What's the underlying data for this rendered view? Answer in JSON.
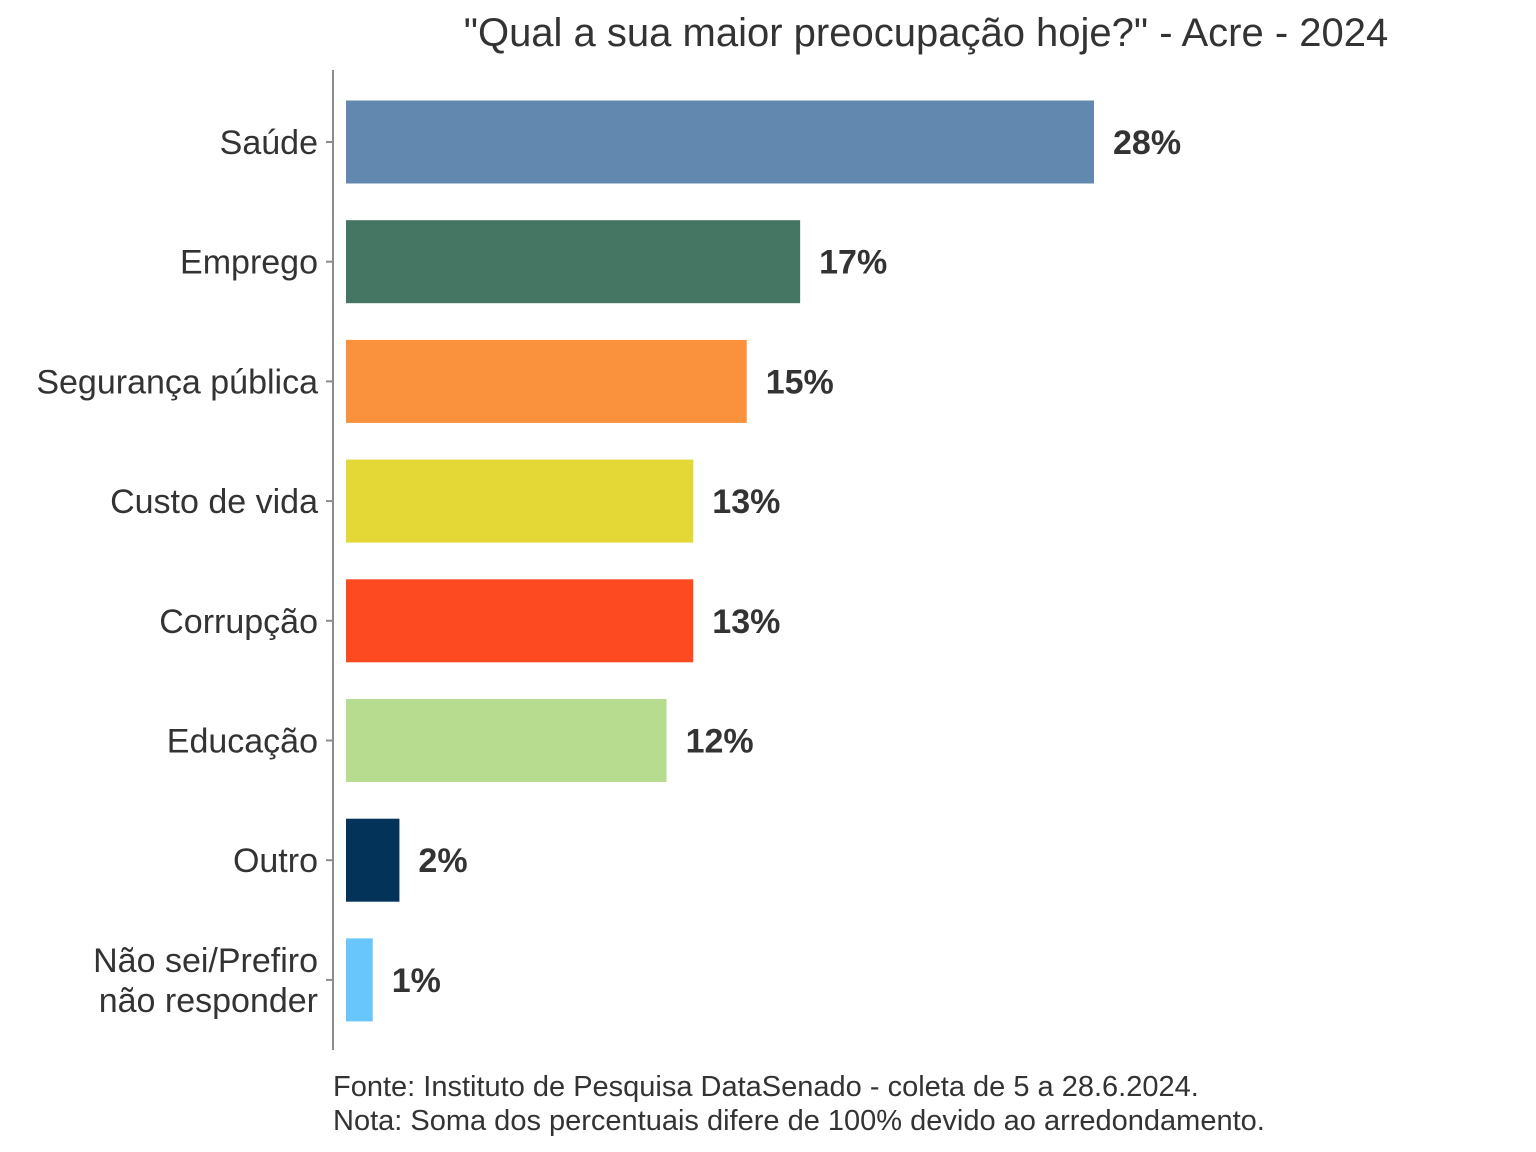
{
  "chart_data": {
    "type": "bar",
    "orientation": "horizontal",
    "title": "\"Qual a sua maior preocupação hoje?\" - Acre - 2024",
    "categories": [
      "Saúde",
      "Emprego",
      "Segurança pública",
      "Custo de vida",
      "Corrupção",
      "Educação",
      "Outro",
      "Não sei/Prefiro não responder"
    ],
    "category_lines": [
      [
        "Saúde"
      ],
      [
        "Emprego"
      ],
      [
        "Segurança pública"
      ],
      [
        "Custo de vida"
      ],
      [
        "Corrupção"
      ],
      [
        "Educação"
      ],
      [
        "Outro"
      ],
      [
        "Não sei/Prefiro",
        "não responder"
      ]
    ],
    "values": [
      28,
      17,
      15,
      13,
      13,
      12,
      2,
      1
    ],
    "value_labels": [
      "28%",
      "17%",
      "15%",
      "13%",
      "13%",
      "12%",
      "2%",
      "1%"
    ],
    "colors": [
      "#6388b0",
      "#457563",
      "#fa913c",
      "#e4d836",
      "#fe4a20",
      "#b8dc8f",
      "#033359",
      "#68c6fd"
    ],
    "xlabel": "",
    "ylabel": "",
    "xlim": [
      0,
      30
    ],
    "grid": false,
    "legend": "none"
  },
  "footer": {
    "source": "Fonte: Instituto de Pesquisa DataSenado - coleta de 5 a 28.6.2024.",
    "note": "Nota: Soma dos percentuais difere de 100% devido ao arredondamento."
  }
}
